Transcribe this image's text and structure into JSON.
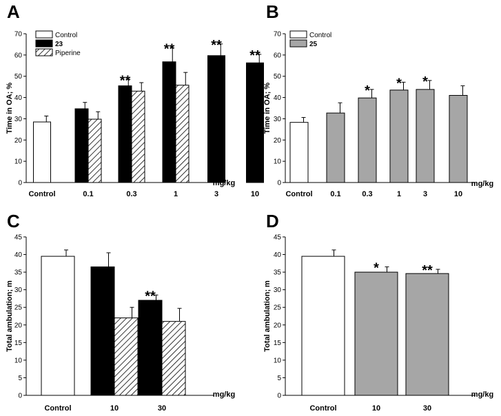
{
  "chart_data": [
    {
      "panel": "A",
      "type": "bar",
      "ylabel": "Time in OA; %",
      "ylim": [
        0,
        70
      ],
      "yticks": [
        0,
        10,
        20,
        30,
        40,
        50,
        60,
        70
      ],
      "xunit": "mg/kg",
      "categories": [
        "Control",
        "0.1",
        "0.3",
        "1",
        "3",
        "10"
      ],
      "legend": {
        "position": "top-left",
        "entries": [
          "Control",
          "23",
          "Piperine"
        ]
      },
      "series": [
        {
          "name": "Control",
          "style": "white",
          "values": [
            28.5,
            null,
            null,
            null,
            null,
            null
          ],
          "errors": [
            2.8,
            null,
            null,
            null,
            null,
            null
          ]
        },
        {
          "name": "23",
          "style": "black",
          "values": [
            null,
            34.7,
            45.5,
            56.8,
            59.7,
            56.3
          ],
          "errors": [
            null,
            3.0,
            3.0,
            6.5,
            5.5,
            4.0
          ]
        },
        {
          "name": "Piperine",
          "style": "hatch",
          "values": [
            null,
            29.8,
            43.0,
            45.8,
            null,
            null
          ],
          "errors": [
            null,
            3.5,
            4.0,
            6.0,
            null,
            null
          ]
        }
      ],
      "significance": [
        {
          "category": "0.3",
          "label": "**"
        },
        {
          "category": "1",
          "label": "**"
        },
        {
          "category": "3",
          "label": "**"
        },
        {
          "category": "10",
          "label": "**"
        }
      ]
    },
    {
      "panel": "B",
      "type": "bar",
      "ylabel": "Time in OA; %",
      "ylim": [
        0,
        70
      ],
      "yticks": [
        0,
        10,
        20,
        30,
        40,
        50,
        60,
        70
      ],
      "xunit": "mg/kg",
      "categories": [
        "Control",
        "0.1",
        "0.3",
        "1",
        "3",
        "10"
      ],
      "legend": {
        "position": "top-left",
        "entries": [
          "Control",
          "25"
        ]
      },
      "series": [
        {
          "name": "Control",
          "style": "white",
          "values": [
            28.3,
            null,
            null,
            null,
            null,
            null
          ],
          "errors": [
            2.3,
            null,
            null,
            null,
            null,
            null
          ]
        },
        {
          "name": "25",
          "style": "gray",
          "values": [
            null,
            32.7,
            39.8,
            43.5,
            43.8,
            41.0
          ],
          "errors": [
            null,
            4.8,
            4.0,
            3.7,
            4.2,
            4.5
          ]
        }
      ],
      "significance": [
        {
          "category": "0.3",
          "label": "*"
        },
        {
          "category": "1",
          "label": "*"
        },
        {
          "category": "3",
          "label": "*"
        }
      ]
    },
    {
      "panel": "C",
      "type": "bar",
      "ylabel": "Total ambulation; m",
      "ylim": [
        0,
        45
      ],
      "yticks": [
        0,
        5,
        10,
        15,
        20,
        25,
        30,
        35,
        40,
        45
      ],
      "xunit": "mg/kg",
      "categories": [
        "Control",
        "10",
        "30"
      ],
      "series": [
        {
          "name": "Control",
          "style": "white",
          "values": [
            39.5,
            null,
            null
          ],
          "errors": [
            1.8,
            null,
            null
          ]
        },
        {
          "name": "23",
          "style": "black",
          "values": [
            null,
            36.5,
            27.0
          ],
          "errors": [
            null,
            4.0,
            1.5
          ]
        },
        {
          "name": "Piperine",
          "style": "hatch",
          "values": [
            null,
            22.0,
            21.0
          ],
          "errors": [
            null,
            3.0,
            3.7
          ]
        }
      ],
      "significance": [
        {
          "category": "30",
          "label": "**"
        }
      ]
    },
    {
      "panel": "D",
      "type": "bar",
      "ylabel": "Total ambulation; m",
      "ylim": [
        0,
        45
      ],
      "yticks": [
        0,
        5,
        10,
        15,
        20,
        25,
        30,
        35,
        40,
        45
      ],
      "xunit": "mg/kg",
      "categories": [
        "Control",
        "10",
        "30"
      ],
      "series": [
        {
          "name": "Control",
          "style": "white",
          "values": [
            39.5,
            null,
            null
          ],
          "errors": [
            1.8,
            null,
            null
          ]
        },
        {
          "name": "25",
          "style": "gray",
          "values": [
            null,
            35.0,
            34.6
          ],
          "errors": [
            null,
            1.5,
            1.2
          ]
        }
      ],
      "significance": [
        {
          "category": "10",
          "label": "*"
        },
        {
          "category": "30",
          "label": "**"
        }
      ]
    }
  ],
  "colors": {
    "black": "#000000",
    "gray": "#a6a6a6",
    "white": "#ffffff"
  }
}
